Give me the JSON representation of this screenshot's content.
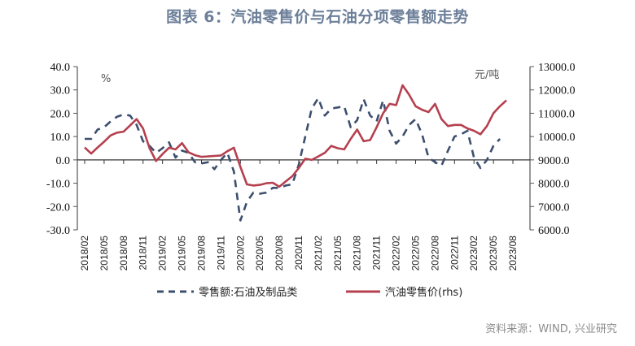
{
  "title": "图表 6：汽油零售价与石油分项零售额走势",
  "source": "资料来源：WIND, 兴业研究",
  "chart_data": {
    "type": "line",
    "title": "图表 6：汽油零售价与石油分项零售额走势",
    "left_axis": {
      "unit": "%",
      "ylim": [
        -30,
        40
      ],
      "ticks": [
        40,
        30,
        20,
        10,
        0,
        -10,
        -20,
        -30
      ],
      "tick_labels": [
        "40.0",
        "30.0",
        "20.0",
        "10.0",
        "0.0",
        "-10.0",
        "-20.0",
        "-30.0"
      ]
    },
    "right_axis": {
      "unit": "元/吨",
      "ylim": [
        6000,
        13000
      ],
      "ticks": [
        13000,
        12000,
        11000,
        10000,
        9000,
        8000,
        7000,
        6000
      ],
      "tick_labels": [
        "13000.0",
        "12000.0",
        "11000.0",
        "10000.0",
        "9000.0",
        "8000.0",
        "7000.0",
        "6000.0"
      ]
    },
    "x_start": "2018/02",
    "x_tick_labels": [
      "2018/02",
      "2018/05",
      "2018/08",
      "2018/11",
      "2019/02",
      "2019/05",
      "2019/08",
      "2019/11",
      "2020/02",
      "2020/05",
      "2020/08",
      "2020/11",
      "2021/02",
      "2021/05",
      "2021/08",
      "2021/11",
      "2022/02",
      "2022/05",
      "2022/08",
      "2022/11",
      "2023/02",
      "2023/05",
      "2023/08"
    ],
    "grid": false,
    "legend_position": "bottom",
    "series": [
      {
        "name": "零售额:石油及制品类",
        "axis": "left",
        "style": "dashed",
        "color": "#3d4f6e",
        "start": "2018/02",
        "values": [
          9.0,
          9.0,
          13.0,
          14.0,
          16.5,
          18.5,
          19.5,
          19.0,
          15.0,
          8.0,
          6.0,
          3.0,
          5.0,
          7.5,
          1.0,
          4.0,
          3.0,
          -1.0,
          -1.5,
          -1.0,
          -4.0,
          0.0,
          3.0,
          -5.0,
          -26.0,
          -18.0,
          -14.0,
          -14.5,
          -14.0,
          -12.0,
          -12.0,
          -11.0,
          -10.5,
          -2.0,
          10.0,
          22.0,
          26.5,
          19.0,
          22.0,
          22.5,
          23.0,
          14.0,
          17.0,
          26.0,
          19.0,
          16.5,
          25.5,
          12.5,
          7.0,
          10.0,
          15.0,
          17.5,
          11.0,
          1.0,
          -1.0,
          -2.5,
          4.0,
          10.0,
          11.0,
          12.5,
          1.0,
          -3.5,
          0.0,
          6.0,
          9.0
        ]
      },
      {
        "name": "汽油零售价(rhs)",
        "axis": "right",
        "style": "solid",
        "color": "#b5404f",
        "start": "2018/02",
        "values": [
          9530,
          9270,
          9530,
          9780,
          10050,
          10170,
          10210,
          10480,
          10750,
          10350,
          9500,
          8950,
          9250,
          9520,
          9450,
          9720,
          9330,
          9200,
          9130,
          9150,
          9170,
          9190,
          9370,
          9520,
          8700,
          7950,
          7900,
          7930,
          8000,
          8020,
          7850,
          8080,
          8300,
          8650,
          9050,
          9000,
          9150,
          9300,
          9600,
          9500,
          9450,
          9900,
          10300,
          9800,
          9850,
          10400,
          11000,
          11400,
          11350,
          12200,
          11800,
          11300,
          11150,
          11050,
          11400,
          10750,
          10450,
          10500,
          10500,
          10350,
          10250,
          10100,
          10450,
          11000,
          11300,
          11550
        ]
      }
    ]
  }
}
